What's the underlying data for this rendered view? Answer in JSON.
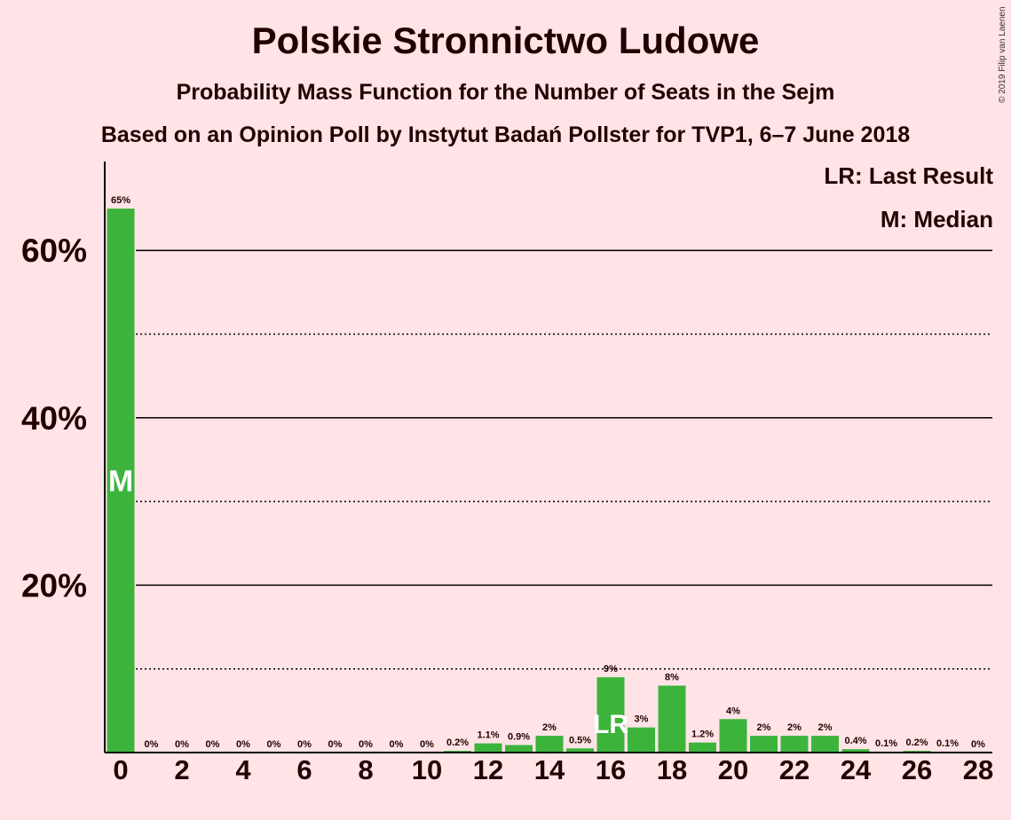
{
  "title": "Polskie Stronnictwo Ludowe",
  "subtitle1": "Probability Mass Function for the Number of Seats in the Sejm",
  "subtitle2": "Based on an Opinion Poll by Instytut Badań Pollster for TVP1, 6–7 June 2018",
  "legend": {
    "lr": "LR: Last Result",
    "m": "M: Median"
  },
  "copyright": "© 2019 Filip van Laenen",
  "colors": {
    "bar": "#3CB43C",
    "background": "#FFE3E6",
    "text": "#200000"
  },
  "chart_data": {
    "type": "bar",
    "categories": [
      0,
      1,
      2,
      3,
      4,
      5,
      6,
      7,
      8,
      9,
      10,
      11,
      12,
      13,
      14,
      15,
      16,
      17,
      18,
      19,
      20,
      21,
      22,
      23,
      24,
      25,
      26,
      27,
      28
    ],
    "values": [
      65,
      0,
      0,
      0,
      0,
      0,
      0,
      0,
      0,
      0,
      0,
      0.2,
      1.1,
      0.9,
      2,
      0.5,
      9,
      3,
      8,
      1.2,
      4,
      2,
      2,
      2,
      0.4,
      0.1,
      0.2,
      0.1,
      0
    ],
    "labels": [
      "65%",
      "0%",
      "0%",
      "0%",
      "0%",
      "0%",
      "0%",
      "0%",
      "0%",
      "0%",
      "0%",
      "0.2%",
      "1.1%",
      "0.9%",
      "2%",
      "0.5%",
      "9%",
      "3%",
      "8%",
      "1.2%",
      "4%",
      "2%",
      "2%",
      "2%",
      "0.4%",
      "0.1%",
      "0.2%",
      "0.1%",
      "0%"
    ],
    "xticks": [
      "0",
      "2",
      "4",
      "6",
      "8",
      "10",
      "12",
      "14",
      "16",
      "18",
      "20",
      "22",
      "24",
      "26",
      "28"
    ],
    "yticks": [
      "20%",
      "40%",
      "60%"
    ],
    "ylim": [
      0,
      70
    ],
    "grid_solid": [
      20,
      40,
      60
    ],
    "grid_dotted": [
      10,
      30,
      50
    ],
    "median_seat": 0,
    "median_label": "M",
    "last_result_seat": 16,
    "last_result_label": "LR"
  }
}
